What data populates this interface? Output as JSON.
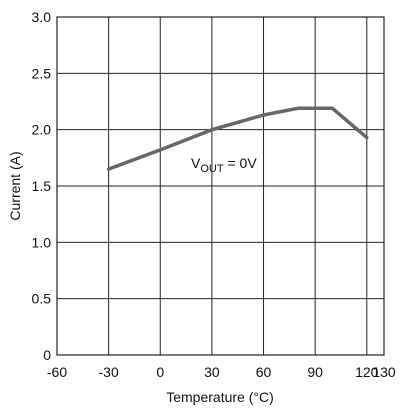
{
  "chart_data": {
    "type": "line",
    "xlabel": "Temperature (°C)",
    "ylabel": "Current (A)",
    "xlim": [
      -60,
      130
    ],
    "ylim": [
      0,
      3.0
    ],
    "x_ticks": [
      -60,
      -30,
      0,
      30,
      60,
      90,
      120,
      130
    ],
    "x_tick_labels": [
      "-60",
      "-30",
      "0",
      "30",
      "60",
      "90",
      "120",
      "130"
    ],
    "y_ticks": [
      0,
      0.5,
      1.0,
      1.5,
      2.0,
      2.5,
      3.0
    ],
    "y_tick_labels": [
      "0",
      "0.5",
      "1.0",
      "1.5",
      "2.0",
      "2.5",
      "3.0"
    ],
    "grid": true,
    "series": [
      {
        "x": [
          -30,
          0,
          30,
          60,
          80,
          100,
          120
        ],
        "y": [
          1.65,
          1.82,
          2.0,
          2.13,
          2.19,
          2.19,
          1.93
        ]
      }
    ],
    "annotation": {
      "main": "V",
      "sub": "OUT",
      "rest": " = 0V",
      "at_x": 43,
      "at_y": 1.9
    },
    "line_color": "#666666"
  }
}
